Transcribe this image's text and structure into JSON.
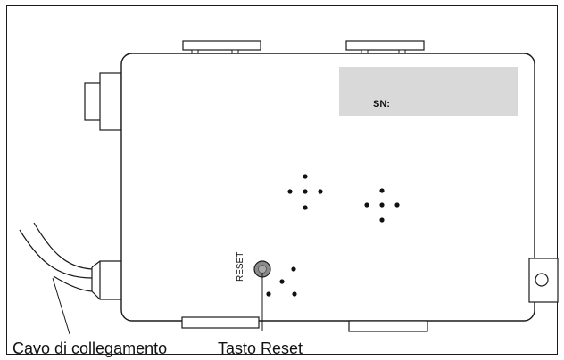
{
  "labels": {
    "serial_number": "SN:",
    "reset_marking": "RESET",
    "cable_callout": "Cavo di collegamento",
    "reset_button_callout": "Tasto Reset"
  },
  "colors": {
    "outline": "#1a1a1a",
    "serial_label_fill": "#d9d9d9",
    "reset_button_fill": "#8a8a8a",
    "dots": "#111111"
  },
  "icons": [
    "cable-connector",
    "side-connector",
    "reset-button",
    "mounting-screw",
    "speaker-dot-pattern"
  ]
}
